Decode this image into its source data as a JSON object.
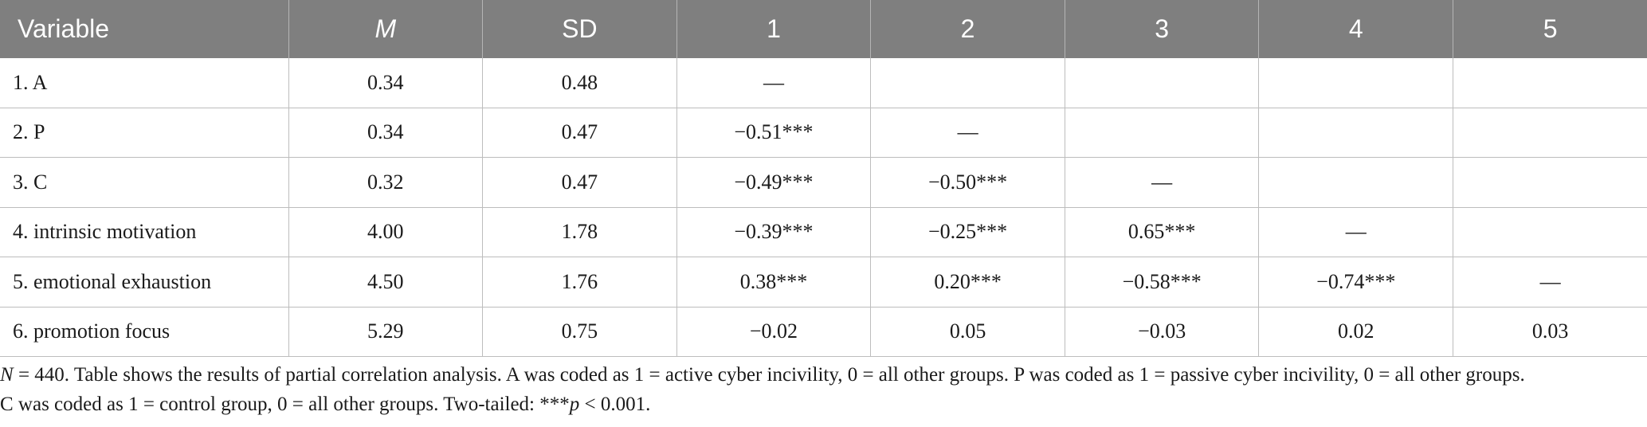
{
  "table": {
    "headers": [
      "Variable",
      "M",
      "SD",
      "1",
      "2",
      "3",
      "4",
      "5"
    ],
    "rows": [
      [
        "1. A",
        "0.34",
        "0.48",
        "—",
        "",
        "",
        "",
        ""
      ],
      [
        "2. P",
        "0.34",
        "0.47",
        "−0.51***",
        "—",
        "",
        "",
        ""
      ],
      [
        "3. C",
        "0.32",
        "0.47",
        "−0.49***",
        "−0.50***",
        "—",
        "",
        ""
      ],
      [
        "4. intrinsic motivation",
        "4.00",
        "1.78",
        "−0.39***",
        "−0.25***",
        "0.65***",
        "—",
        ""
      ],
      [
        "5. emotional exhaustion",
        "4.50",
        "1.76",
        "0.38***",
        "0.20***",
        "−0.58***",
        "−0.74***",
        "—"
      ],
      [
        "6. promotion focus",
        "5.29",
        "0.75",
        "−0.02",
        "0.05",
        "−0.03",
        "0.02",
        "0.03"
      ]
    ]
  },
  "note": {
    "n_label": "N",
    "line1_rest": " = 440. Table shows the results of partial correlation analysis. A was coded as 1 = active cyber incivility, 0 = all other groups. P was coded as 1 = passive cyber incivility, 0 = all other groups.",
    "line2_start": "C was coded as 1 = control group, 0 = all other groups. Two-tailed: ***",
    "p_label": "p",
    "line2_end": " < 0.001."
  }
}
